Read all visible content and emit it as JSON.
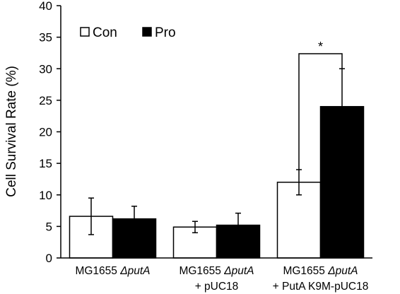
{
  "chart_data": {
    "type": "bar",
    "title": "",
    "xlabel": "",
    "ylabel": "Cell Survival Rate (%)",
    "ylim": [
      0,
      40
    ],
    "yticks": [
      0,
      5,
      10,
      15,
      20,
      25,
      30,
      35,
      40
    ],
    "grid": false,
    "legend_position": "top-left",
    "categories": [
      {
        "line1_prefix": "MG1655 ",
        "line1_italic": "ΔputA",
        "line2": ""
      },
      {
        "line1_prefix": "MG1655 ",
        "line1_italic": "ΔputA",
        "line2": "+ pUC18"
      },
      {
        "line1_prefix": "MG1655 ",
        "line1_italic": "ΔputA",
        "line2": "+ PutA K9M-pUC18"
      }
    ],
    "series": [
      {
        "name": "Con",
        "color": "#ffffff",
        "values": [
          6.6,
          4.9,
          12.0
        ],
        "errors": [
          2.9,
          0.9,
          2.0
        ]
      },
      {
        "name": "Pro",
        "color": "#000000",
        "values": [
          6.2,
          5.2,
          24.0
        ],
        "errors": [
          2.0,
          1.9,
          6.0
        ]
      }
    ],
    "annotations": [
      {
        "type": "significance",
        "label": "*",
        "category_index": 2
      }
    ]
  }
}
